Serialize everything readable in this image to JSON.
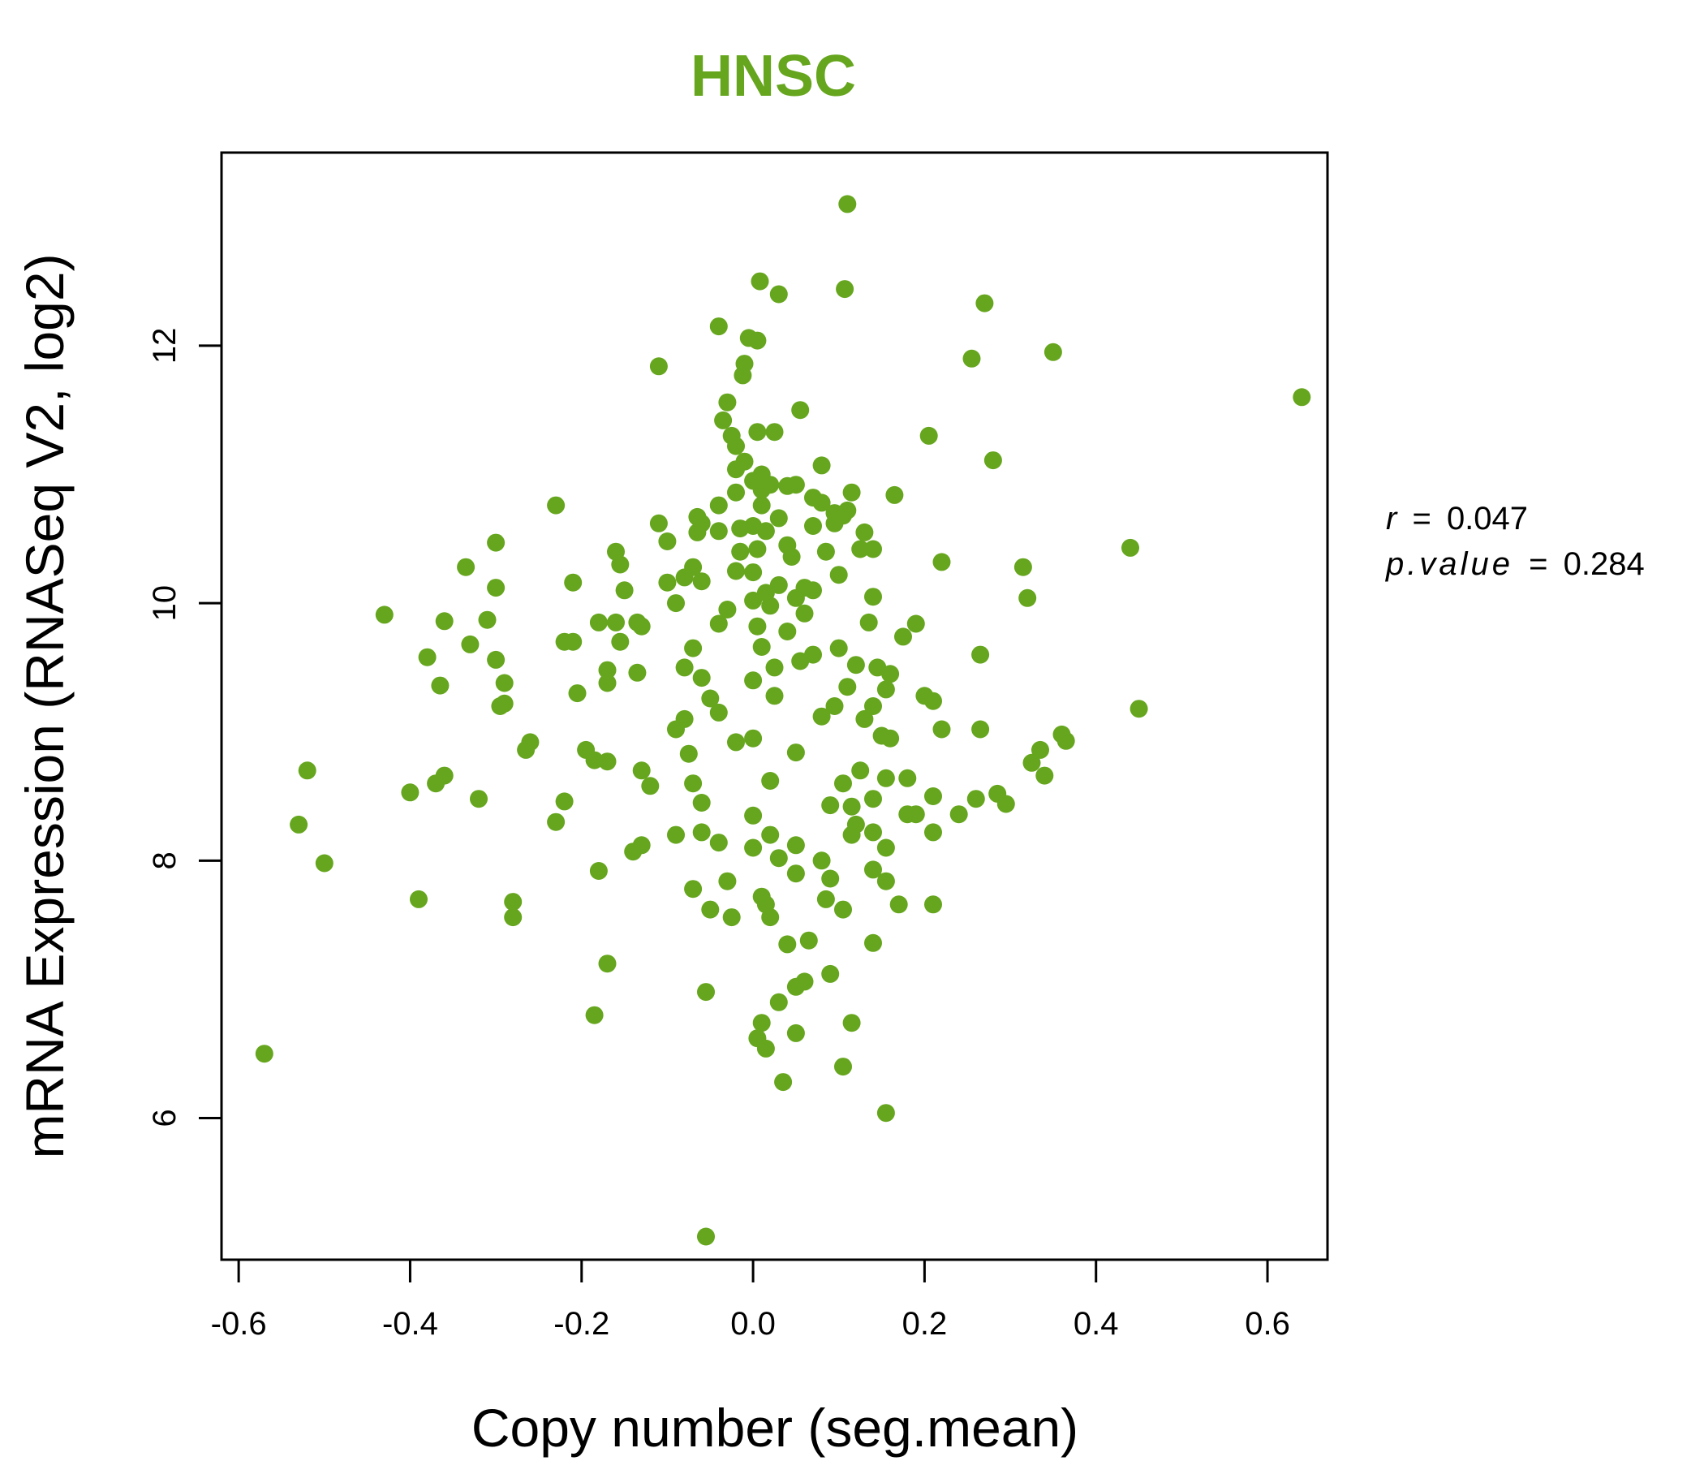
{
  "chart_data": {
    "type": "scatter",
    "title": "HNSC",
    "title_color": "#66a61e",
    "point_color": "#66a61e",
    "xlabel": "Copy number (seg.mean)",
    "ylabel": "mRNA Expression (RNASeq V2, log2)",
    "xlim": [
      -0.62,
      0.67
    ],
    "ylim": [
      4.9,
      13.5
    ],
    "x_ticks": [
      {
        "value": -0.6,
        "label": "-0.6"
      },
      {
        "value": -0.4,
        "label": "-0.4"
      },
      {
        "value": -0.2,
        "label": "-0.2"
      },
      {
        "value": 0.0,
        "label": "0.0"
      },
      {
        "value": 0.2,
        "label": "0.2"
      },
      {
        "value": 0.4,
        "label": "0.4"
      },
      {
        "value": 0.6,
        "label": "0.6"
      }
    ],
    "y_ticks": [
      {
        "value": 6,
        "label": "6"
      },
      {
        "value": 8,
        "label": "8"
      },
      {
        "value": 10,
        "label": "10"
      },
      {
        "value": 12,
        "label": "12"
      }
    ],
    "stats": {
      "r_label": "r",
      "r_value": "0.047",
      "p_label": "p.value",
      "p_value": "0.284"
    },
    "points": [
      [
        0.11,
        13.1
      ],
      [
        0.008,
        12.5
      ],
      [
        0.03,
        12.4
      ],
      [
        0.107,
        12.44
      ],
      [
        0.27,
        12.33
      ],
      [
        -0.04,
        12.15
      ],
      [
        -0.005,
        12.06
      ],
      [
        0.005,
        12.04
      ],
      [
        0.35,
        11.95
      ],
      [
        -0.11,
        11.84
      ],
      [
        0.255,
        11.9
      ],
      [
        -0.01,
        11.86
      ],
      [
        -0.012,
        11.77
      ],
      [
        0.64,
        11.6
      ],
      [
        -0.03,
        11.56
      ],
      [
        0.055,
        11.5
      ],
      [
        -0.035,
        11.42
      ],
      [
        0.005,
        11.33
      ],
      [
        0.025,
        11.33
      ],
      [
        -0.025,
        11.3
      ],
      [
        0.205,
        11.3
      ],
      [
        -0.02,
        11.22
      ],
      [
        0.28,
        11.11
      ],
      [
        -0.01,
        11.1
      ],
      [
        0.08,
        11.07
      ],
      [
        -0.02,
        11.04
      ],
      [
        0.01,
        11.0
      ],
      [
        0.0,
        10.95
      ],
      [
        0.02,
        10.92
      ],
      [
        0.04,
        10.91
      ],
      [
        0.05,
        10.92
      ],
      [
        0.01,
        10.88
      ],
      [
        0.115,
        10.86
      ],
      [
        0.165,
        10.84
      ],
      [
        -0.02,
        10.86
      ],
      [
        0.07,
        10.82
      ],
      [
        0.08,
        10.78
      ],
      [
        -0.23,
        10.76
      ],
      [
        -0.04,
        10.76
      ],
      [
        0.01,
        10.76
      ],
      [
        0.095,
        10.7
      ],
      [
        0.11,
        10.72
      ],
      [
        -0.065,
        10.67
      ],
      [
        0.03,
        10.66
      ],
      [
        0.105,
        10.68
      ],
      [
        -0.06,
        10.62
      ],
      [
        -0.11,
        10.62
      ],
      [
        0.07,
        10.6
      ],
      [
        0.095,
        10.62
      ],
      [
        0.0,
        10.6
      ],
      [
        -0.015,
        10.58
      ],
      [
        0.015,
        10.56
      ],
      [
        -0.04,
        10.56
      ],
      [
        0.13,
        10.55
      ],
      [
        -0.065,
        10.55
      ],
      [
        -0.1,
        10.48
      ],
      [
        -0.3,
        10.47
      ],
      [
        0.04,
        10.45
      ],
      [
        0.005,
        10.42
      ],
      [
        0.085,
        10.4
      ],
      [
        0.125,
        10.42
      ],
      [
        0.44,
        10.43
      ],
      [
        0.14,
        10.42
      ],
      [
        -0.16,
        10.4
      ],
      [
        -0.015,
        10.4
      ],
      [
        0.045,
        10.36
      ],
      [
        0.22,
        10.32
      ],
      [
        -0.335,
        10.28
      ],
      [
        -0.155,
        10.3
      ],
      [
        0.315,
        10.28
      ],
      [
        -0.07,
        10.28
      ],
      [
        -0.02,
        10.25
      ],
      [
        0.0,
        10.24
      ],
      [
        0.1,
        10.22
      ],
      [
        -0.21,
        10.16
      ],
      [
        -0.1,
        10.16
      ],
      [
        -0.06,
        10.17
      ],
      [
        -0.08,
        10.2
      ],
      [
        0.03,
        10.14
      ],
      [
        -0.3,
        10.12
      ],
      [
        0.06,
        10.12
      ],
      [
        0.07,
        10.1
      ],
      [
        -0.15,
        10.1
      ],
      [
        0.015,
        10.08
      ],
      [
        0.14,
        10.05
      ],
      [
        0.32,
        10.04
      ],
      [
        0.05,
        10.04
      ],
      [
        -0.09,
        10.0
      ],
      [
        0.0,
        10.02
      ],
      [
        0.02,
        9.98
      ],
      [
        -0.03,
        9.95
      ],
      [
        0.06,
        9.92
      ],
      [
        -0.43,
        9.91
      ],
      [
        -0.36,
        9.86
      ],
      [
        -0.31,
        9.87
      ],
      [
        -0.18,
        9.85
      ],
      [
        -0.16,
        9.85
      ],
      [
        -0.135,
        9.85
      ],
      [
        0.135,
        9.85
      ],
      [
        0.19,
        9.84
      ],
      [
        -0.04,
        9.84
      ],
      [
        0.005,
        9.82
      ],
      [
        -0.13,
        9.82
      ],
      [
        0.04,
        9.78
      ],
      [
        0.175,
        9.74
      ],
      [
        -0.22,
        9.7
      ],
      [
        -0.21,
        9.7
      ],
      [
        -0.155,
        9.7
      ],
      [
        -0.33,
        9.68
      ],
      [
        0.1,
        9.65
      ],
      [
        -0.07,
        9.65
      ],
      [
        0.01,
        9.66
      ],
      [
        -0.38,
        9.58
      ],
      [
        -0.3,
        9.56
      ],
      [
        0.265,
        9.6
      ],
      [
        0.055,
        9.55
      ],
      [
        0.07,
        9.6
      ],
      [
        0.12,
        9.52
      ],
      [
        -0.17,
        9.48
      ],
      [
        -0.135,
        9.46
      ],
      [
        0.145,
        9.5
      ],
      [
        -0.08,
        9.5
      ],
      [
        0.025,
        9.5
      ],
      [
        0.16,
        9.45
      ],
      [
        -0.06,
        9.42
      ],
      [
        -0.29,
        9.38
      ],
      [
        -0.365,
        9.36
      ],
      [
        -0.17,
        9.38
      ],
      [
        0.0,
        9.4
      ],
      [
        0.11,
        9.35
      ],
      [
        0.155,
        9.33
      ],
      [
        -0.205,
        9.3
      ],
      [
        0.2,
        9.28
      ],
      [
        -0.29,
        9.22
      ],
      [
        -0.295,
        9.2
      ],
      [
        0.45,
        9.18
      ],
      [
        0.21,
        9.24
      ],
      [
        0.14,
        9.2
      ],
      [
        0.095,
        9.2
      ],
      [
        -0.05,
        9.26
      ],
      [
        0.025,
        9.28
      ],
      [
        -0.04,
        9.15
      ],
      [
        -0.08,
        9.1
      ],
      [
        0.13,
        9.1
      ],
      [
        0.08,
        9.12
      ],
      [
        0.265,
        9.02
      ],
      [
        0.22,
        9.02
      ],
      [
        -0.09,
        9.02
      ],
      [
        0.15,
        8.97
      ],
      [
        0.16,
        8.95
      ],
      [
        0.36,
        8.98
      ],
      [
        0.365,
        8.93
      ],
      [
        0.0,
        8.95
      ],
      [
        -0.02,
        8.92
      ],
      [
        -0.26,
        8.92
      ],
      [
        -0.265,
        8.86
      ],
      [
        -0.195,
        8.86
      ],
      [
        0.335,
        8.86
      ],
      [
        -0.075,
        8.83
      ],
      [
        0.05,
        8.84
      ],
      [
        -0.185,
        8.78
      ],
      [
        -0.17,
        8.77
      ],
      [
        0.325,
        8.76
      ],
      [
        -0.52,
        8.7
      ],
      [
        -0.13,
        8.7
      ],
      [
        -0.36,
        8.66
      ],
      [
        0.125,
        8.7
      ],
      [
        0.34,
        8.66
      ],
      [
        0.155,
        8.64
      ],
      [
        0.18,
        8.64
      ],
      [
        -0.37,
        8.6
      ],
      [
        -0.12,
        8.58
      ],
      [
        -0.07,
        8.6
      ],
      [
        0.02,
        8.62
      ],
      [
        0.105,
        8.6
      ],
      [
        -0.4,
        8.53
      ],
      [
        -0.32,
        8.48
      ],
      [
        0.285,
        8.52
      ],
      [
        0.26,
        8.48
      ],
      [
        0.21,
        8.5
      ],
      [
        -0.22,
        8.46
      ],
      [
        0.14,
        8.48
      ],
      [
        0.115,
        8.42
      ],
      [
        -0.06,
        8.45
      ],
      [
        0.09,
        8.43
      ],
      [
        0.295,
        8.44
      ],
      [
        0.24,
        8.36
      ],
      [
        0.18,
        8.36
      ],
      [
        0.19,
        8.36
      ],
      [
        0.0,
        8.35
      ],
      [
        -0.53,
        8.28
      ],
      [
        -0.23,
        8.3
      ],
      [
        0.12,
        8.28
      ],
      [
        0.21,
        8.22
      ],
      [
        0.14,
        8.22
      ],
      [
        -0.09,
        8.2
      ],
      [
        -0.06,
        8.22
      ],
      [
        0.02,
        8.2
      ],
      [
        0.115,
        8.2
      ],
      [
        -0.13,
        8.12
      ],
      [
        -0.14,
        8.07
      ],
      [
        -0.04,
        8.14
      ],
      [
        0.05,
        8.12
      ],
      [
        0.155,
        8.1
      ],
      [
        0.0,
        8.1
      ],
      [
        -0.5,
        7.98
      ],
      [
        0.08,
        8.0
      ],
      [
        0.03,
        8.02
      ],
      [
        -0.18,
        7.92
      ],
      [
        0.14,
        7.93
      ],
      [
        0.05,
        7.9
      ],
      [
        0.155,
        7.84
      ],
      [
        0.09,
        7.86
      ],
      [
        -0.07,
        7.78
      ],
      [
        -0.03,
        7.84
      ],
      [
        -0.39,
        7.7
      ],
      [
        -0.28,
        7.68
      ],
      [
        0.085,
        7.7
      ],
      [
        0.17,
        7.66
      ],
      [
        0.21,
        7.66
      ],
      [
        0.01,
        7.72
      ],
      [
        0.015,
        7.66
      ],
      [
        -0.05,
        7.62
      ],
      [
        0.105,
        7.62
      ],
      [
        -0.28,
        7.56
      ],
      [
        -0.025,
        7.56
      ],
      [
        0.02,
        7.56
      ],
      [
        0.065,
        7.38
      ],
      [
        0.14,
        7.36
      ],
      [
        0.04,
        7.35
      ],
      [
        -0.17,
        7.2
      ],
      [
        0.09,
        7.12
      ],
      [
        0.06,
        7.06
      ],
      [
        0.05,
        7.02
      ],
      [
        -0.055,
        6.98
      ],
      [
        0.03,
        6.9
      ],
      [
        -0.185,
        6.8
      ],
      [
        0.115,
        6.74
      ],
      [
        0.01,
        6.74
      ],
      [
        0.05,
        6.66
      ],
      [
        0.005,
        6.62
      ],
      [
        0.015,
        6.54
      ],
      [
        -0.57,
        6.5
      ],
      [
        0.105,
        6.4
      ],
      [
        0.035,
        6.28
      ],
      [
        0.155,
        6.04
      ],
      [
        -0.055,
        5.08
      ]
    ]
  }
}
